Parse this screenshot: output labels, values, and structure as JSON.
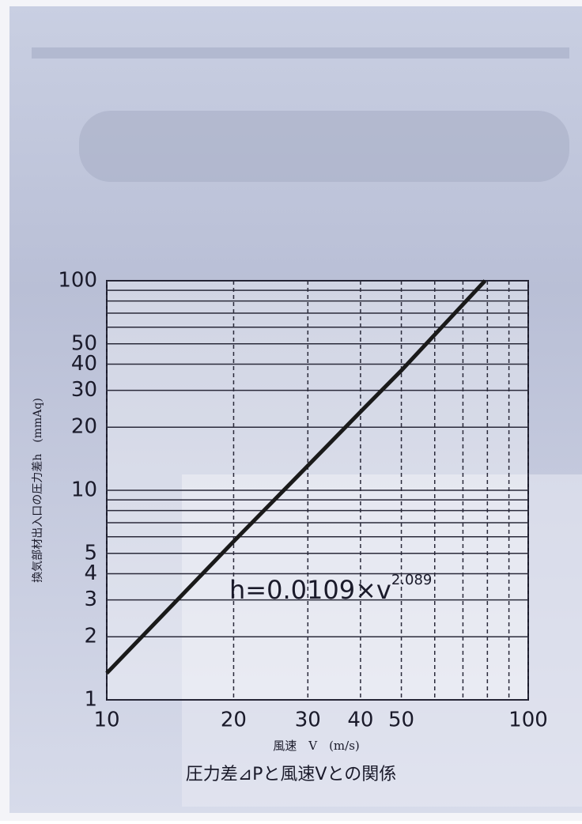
{
  "chart_data": {
    "type": "line",
    "title": "圧力差⊿Pと風速Vとの関係",
    "x_label": "風速　V　(m/s)",
    "y_label": "換気部材出入口の圧力差h　(mmAq)",
    "annotation": {
      "text": "h=0.0109×v",
      "exponent": "2.089"
    },
    "log_x": true,
    "log_y": true,
    "grid": true,
    "xlim": [
      10,
      100
    ],
    "ylim": [
      1,
      100
    ],
    "xticks": [
      10,
      20,
      30,
      40,
      50,
      100
    ],
    "yticks": [
      1,
      2,
      3,
      4,
      5,
      10,
      20,
      30,
      40,
      50,
      100
    ],
    "minor_xticks": [
      60,
      70,
      80,
      90
    ],
    "minor_yticks": [
      6,
      7,
      8,
      9,
      60,
      70,
      80,
      90
    ],
    "x": [
      10,
      20,
      30,
      40,
      50,
      79
    ],
    "series": [
      {
        "color": "#1a1a1a",
        "values": [
          1.34,
          5.7,
          13.1,
          23.7,
          37.3,
          100
        ]
      }
    ]
  }
}
